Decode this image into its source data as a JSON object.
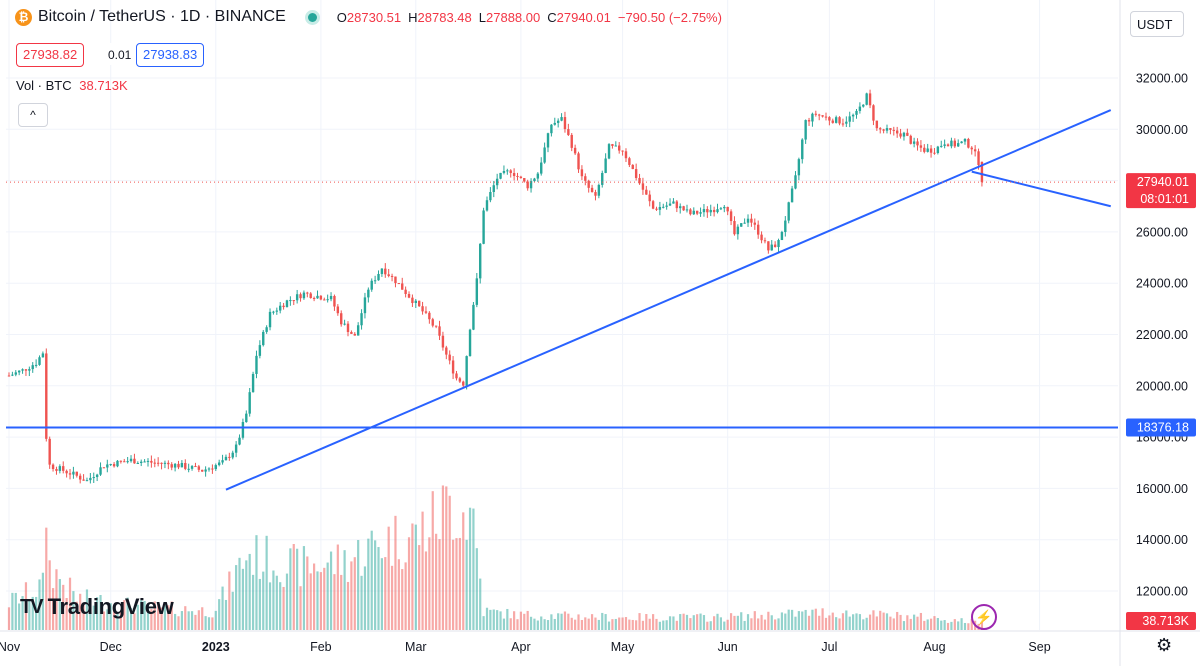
{
  "header": {
    "title": "Bitcoin / TetherUS · 1D · BINANCE",
    "coin_glyph": "₿",
    "ohlc": [
      {
        "k": "O",
        "v": "28730.51"
      },
      {
        "k": "H",
        "v": "28783.48"
      },
      {
        "k": "L",
        "v": "27888.00"
      },
      {
        "k": "C",
        "v": "27940.01"
      },
      {
        "k": "",
        "v": "−790.50 (−2.75%)"
      }
    ],
    "sell_price": "27938.82",
    "spread": "0.01",
    "buy_price": "27938.83",
    "volume_label": "Vol · BTC",
    "volume_value": "38.713K",
    "collapse_icon": "^",
    "currency": "USDT"
  },
  "logo": {
    "mark": "TV",
    "text": "TradingView"
  },
  "colors": {
    "up": "#26a69a",
    "down": "#ef5350",
    "line": "#2962ff",
    "last_bg": "#f23645"
  },
  "chart_data": {
    "type": "candlestick",
    "title": "Bitcoin / TetherUS · 1D · BINANCE",
    "y_ticks": [
      12000,
      14000,
      16000,
      18000,
      20000,
      22000,
      24000,
      26000,
      28000,
      30000,
      32000
    ],
    "y_tick_labels": [
      "12000.00",
      "14000.00",
      "16000.00",
      "18000.00",
      "20000.00",
      "22000.00",
      "24000.00",
      "26000.00",
      "28000.00",
      "30000.00",
      "32000.00"
    ],
    "ylim": [
      10800,
      33000
    ],
    "x_labels": [
      "Nov",
      "Dec",
      "2023",
      "Feb",
      "Mar",
      "Apr",
      "May",
      "Jun",
      "Jul",
      "Aug",
      "Sep"
    ],
    "x_label_days": [
      0,
      30,
      61,
      92,
      120,
      151,
      181,
      212,
      242,
      273,
      304
    ],
    "last_price": 27940.01,
    "last_price_label": "27940.01",
    "countdown": "08:01:01",
    "horizontal_level": 18376.18,
    "horizontal_level_label": "18376.18",
    "volume_last_label": "38.713K",
    "close_waypoints": [
      [
        0,
        20400
      ],
      [
        4,
        20600
      ],
      [
        8,
        20900
      ],
      [
        10,
        21300
      ],
      [
        11,
        18000
      ],
      [
        12,
        16900
      ],
      [
        18,
        16600
      ],
      [
        23,
        16300
      ],
      [
        28,
        16900
      ],
      [
        36,
        17100
      ],
      [
        43,
        17000
      ],
      [
        50,
        16900
      ],
      [
        57,
        16700
      ],
      [
        63,
        17000
      ],
      [
        67,
        17600
      ],
      [
        70,
        18900
      ],
      [
        73,
        21200
      ],
      [
        77,
        22800
      ],
      [
        82,
        23300
      ],
      [
        87,
        23600
      ],
      [
        95,
        23400
      ],
      [
        98,
        22500
      ],
      [
        102,
        21900
      ],
      [
        106,
        23800
      ],
      [
        110,
        24600
      ],
      [
        114,
        24100
      ],
      [
        118,
        23500
      ],
      [
        122,
        22900
      ],
      [
        126,
        22200
      ],
      [
        129,
        21200
      ],
      [
        132,
        20300
      ],
      [
        134,
        20100
      ],
      [
        136,
        22300
      ],
      [
        138,
        24100
      ],
      [
        140,
        26900
      ],
      [
        144,
        28100
      ],
      [
        148,
        28400
      ],
      [
        153,
        27800
      ],
      [
        156,
        28300
      ],
      [
        160,
        30200
      ],
      [
        163,
        30400
      ],
      [
        166,
        29400
      ],
      [
        169,
        28100
      ],
      [
        173,
        27300
      ],
      [
        177,
        29300
      ],
      [
        181,
        29200
      ],
      [
        186,
        27900
      ],
      [
        190,
        26900
      ],
      [
        196,
        27100
      ],
      [
        201,
        26700
      ],
      [
        205,
        26800
      ],
      [
        208,
        26900
      ],
      [
        211,
        27100
      ],
      [
        214,
        25900
      ],
      [
        218,
        26600
      ],
      [
        221,
        26000
      ],
      [
        224,
        25300
      ],
      [
        227,
        25600
      ],
      [
        229,
        26500
      ],
      [
        232,
        28100
      ],
      [
        235,
        30300
      ],
      [
        238,
        30600
      ],
      [
        242,
        30400
      ],
      [
        246,
        30300
      ],
      [
        250,
        30600
      ],
      [
        253,
        31300
      ],
      [
        256,
        30000
      ],
      [
        260,
        29900
      ],
      [
        264,
        29800
      ],
      [
        267,
        29400
      ],
      [
        270,
        29200
      ],
      [
        273,
        29200
      ],
      [
        276,
        29500
      ],
      [
        279,
        29400
      ],
      [
        282,
        29500
      ],
      [
        284,
        29300
      ],
      [
        286,
        28730
      ],
      [
        287,
        27940
      ]
    ],
    "volume_profile_days": [
      0,
      10,
      11,
      12,
      20,
      40,
      60,
      64,
      70,
      85,
      100,
      110,
      120,
      125,
      130,
      137,
      140,
      150,
      180,
      210,
      240,
      270,
      287
    ],
    "volume_profile_level": [
      0.22,
      0.35,
      1.0,
      0.5,
      0.25,
      0.18,
      0.15,
      0.3,
      0.6,
      0.5,
      0.55,
      0.7,
      0.75,
      0.85,
      1.0,
      0.9,
      0.15,
      0.12,
      0.1,
      0.1,
      0.14,
      0.1,
      0.06
    ]
  }
}
